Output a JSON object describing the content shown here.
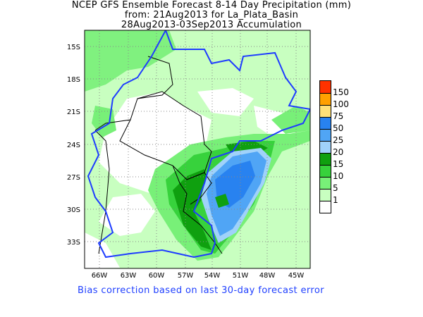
{
  "title": {
    "line1": "NCEP GFS Ensemble Forecast 8-14 Day Precipitation (mm)",
    "line2": "from: 21Aug2013   for La_Plata_Basin",
    "line3": "28Aug2013-03Sep2013 Accumulation"
  },
  "axes": {
    "lon_labels": [
      "66W",
      "63W",
      "60W",
      "57W",
      "54W",
      "51W",
      "48W",
      "45W"
    ],
    "lat_labels": [
      "15S",
      "18S",
      "21S",
      "24S",
      "27S",
      "30S",
      "33S"
    ]
  },
  "legend": {
    "levels": [
      {
        "label": "150",
        "color": "#ff3200"
      },
      {
        "label": "100",
        "color": "#ffa000"
      },
      {
        "label": "75",
        "color": "#ffe178"
      },
      {
        "label": "50",
        "color": "#2882f0"
      },
      {
        "label": "25",
        "color": "#50a5f5"
      },
      {
        "label": "20",
        "color": "#a0d2fa"
      },
      {
        "label": "15",
        "color": "#0fa00f"
      },
      {
        "label": "10",
        "color": "#37d23c"
      },
      {
        "label": "5",
        "color": "#78f078"
      },
      {
        "label": "1",
        "color": "#c8ffc0"
      },
      {
        "label": "",
        "color": "#ffffff"
      }
    ]
  },
  "footer": "Bias correction based on last 30-day forecast error"
}
